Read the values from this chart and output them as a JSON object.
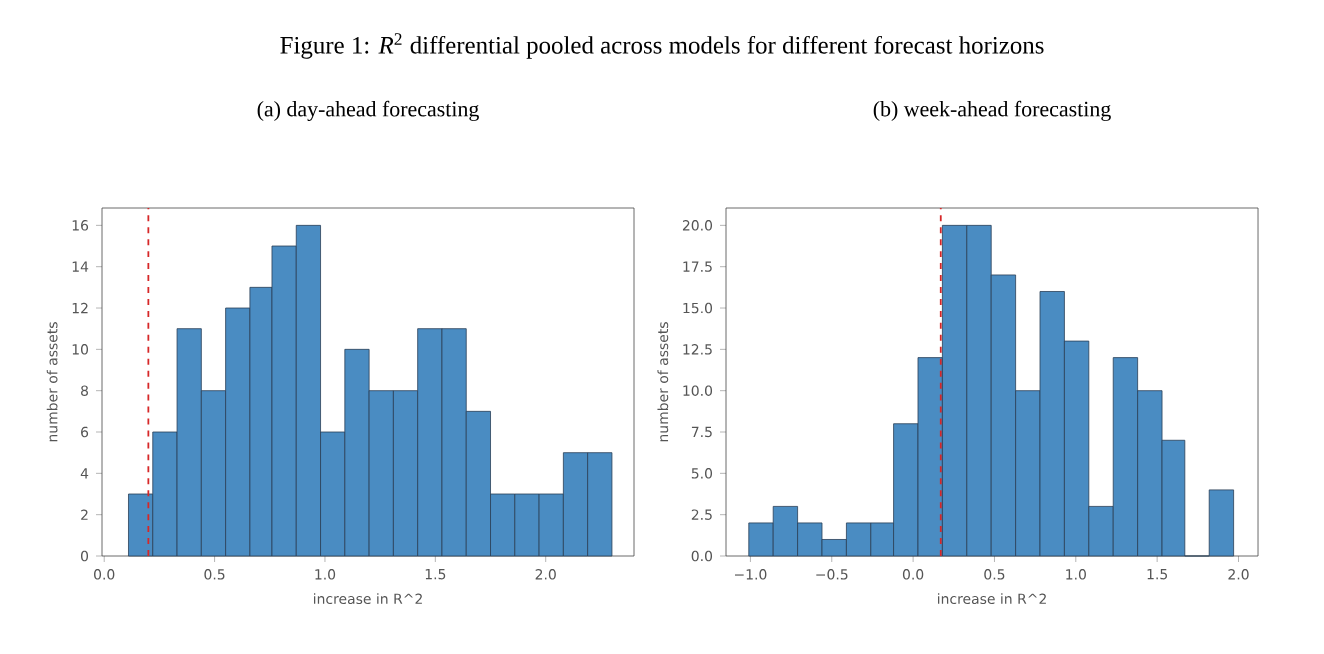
{
  "chart_data": [
    {
      "type": "histogram",
      "title": "(a) day-ahead forecasting",
      "annotations": [
        "Figure 1: *R*$^{2}$ differential pooled across models for different forecast horizons"
      ],
      "xlabel": "increase in R^2",
      "ylabel": "number of assets",
      "color": "#4a8cc2",
      "bins": [
        0.11,
        0.22,
        0.33,
        0.44,
        0.55,
        0.66,
        0.76,
        0.87,
        0.98,
        1.09,
        1.2,
        1.31,
        1.42,
        1.53,
        1.64,
        1.75,
        1.86,
        1.97,
        2.08,
        2.19,
        2.3
      ],
      "values": [
        3,
        6,
        11,
        8,
        12,
        13,
        15,
        16,
        6,
        10,
        8,
        8,
        11,
        11,
        7,
        3,
        3,
        3,
        5,
        5
      ],
      "xlim": [
        -0.01,
        2.4
      ],
      "ylim": [
        0,
        16.84
      ],
      "xticks": [
        {
          "value": 0,
          "label": "0.0"
        },
        {
          "value": 0.5,
          "label": "0.5"
        },
        {
          "value": 1,
          "label": "1.0"
        },
        {
          "value": 1.5,
          "label": "1.5"
        },
        {
          "value": 2,
          "label": "2.0"
        }
      ],
      "yticks": [
        {
          "value": 0,
          "label": "0"
        },
        {
          "value": 2,
          "label": "2"
        },
        {
          "value": 4,
          "label": "4"
        },
        {
          "value": 6,
          "label": "6"
        },
        {
          "value": 8,
          "label": "8"
        },
        {
          "value": 10,
          "label": "10"
        },
        {
          "value": 12,
          "label": "12"
        },
        {
          "value": 14,
          "label": "14"
        },
        {
          "value": 16,
          "label": "16"
        }
      ],
      "ref_lines": [
        {
          "axis": "x",
          "value": 0.2,
          "color": "#d62728",
          "line_style": "dashed"
        }
      ]
    },
    {
      "type": "histogram",
      "title": "(b) week-ahead forecasting",
      "xlabel": "increase in R^2",
      "ylabel": "number of assets",
      "color": "#4a8cc2",
      "bins": [
        -1.01,
        -0.86,
        -0.71,
        -0.56,
        -0.41,
        -0.26,
        -0.12,
        0.03,
        0.18,
        0.33,
        0.48,
        0.63,
        0.78,
        0.93,
        1.08,
        1.23,
        1.38,
        1.53,
        1.67,
        1.82,
        1.97
      ],
      "values": [
        2,
        3,
        2,
        1,
        2,
        2,
        8,
        12,
        20,
        20,
        17,
        10,
        16,
        13,
        3,
        12,
        10,
        7,
        0,
        4
      ],
      "xlim": [
        -1.15,
        2.12
      ],
      "ylim": [
        0,
        21.05
      ],
      "xticks": [
        {
          "value": -1,
          "label": "−1.0"
        },
        {
          "value": -0.5,
          "label": "−0.5"
        },
        {
          "value": 0,
          "label": "0.0"
        },
        {
          "value": 0.5,
          "label": "0.5"
        },
        {
          "value": 1,
          "label": "1.0"
        },
        {
          "value": 1.5,
          "label": "1.5"
        },
        {
          "value": 2,
          "label": "2.0"
        }
      ],
      "yticks": [
        {
          "value": 0,
          "label": "0.0"
        },
        {
          "value": 2.5,
          "label": "2.5"
        },
        {
          "value": 5,
          "label": "5.0"
        },
        {
          "value": 7.5,
          "label": "7.5"
        },
        {
          "value": 10,
          "label": "10.0"
        },
        {
          "value": 12.5,
          "label": "12.5"
        },
        {
          "value": 15,
          "label": "15.0"
        },
        {
          "value": 17.5,
          "label": "17.5"
        },
        {
          "value": 20,
          "label": "20.0"
        }
      ],
      "ref_lines": [
        {
          "axis": "x",
          "value": 0.17,
          "color": "#d62728",
          "line_style": "dashed"
        }
      ]
    }
  ]
}
